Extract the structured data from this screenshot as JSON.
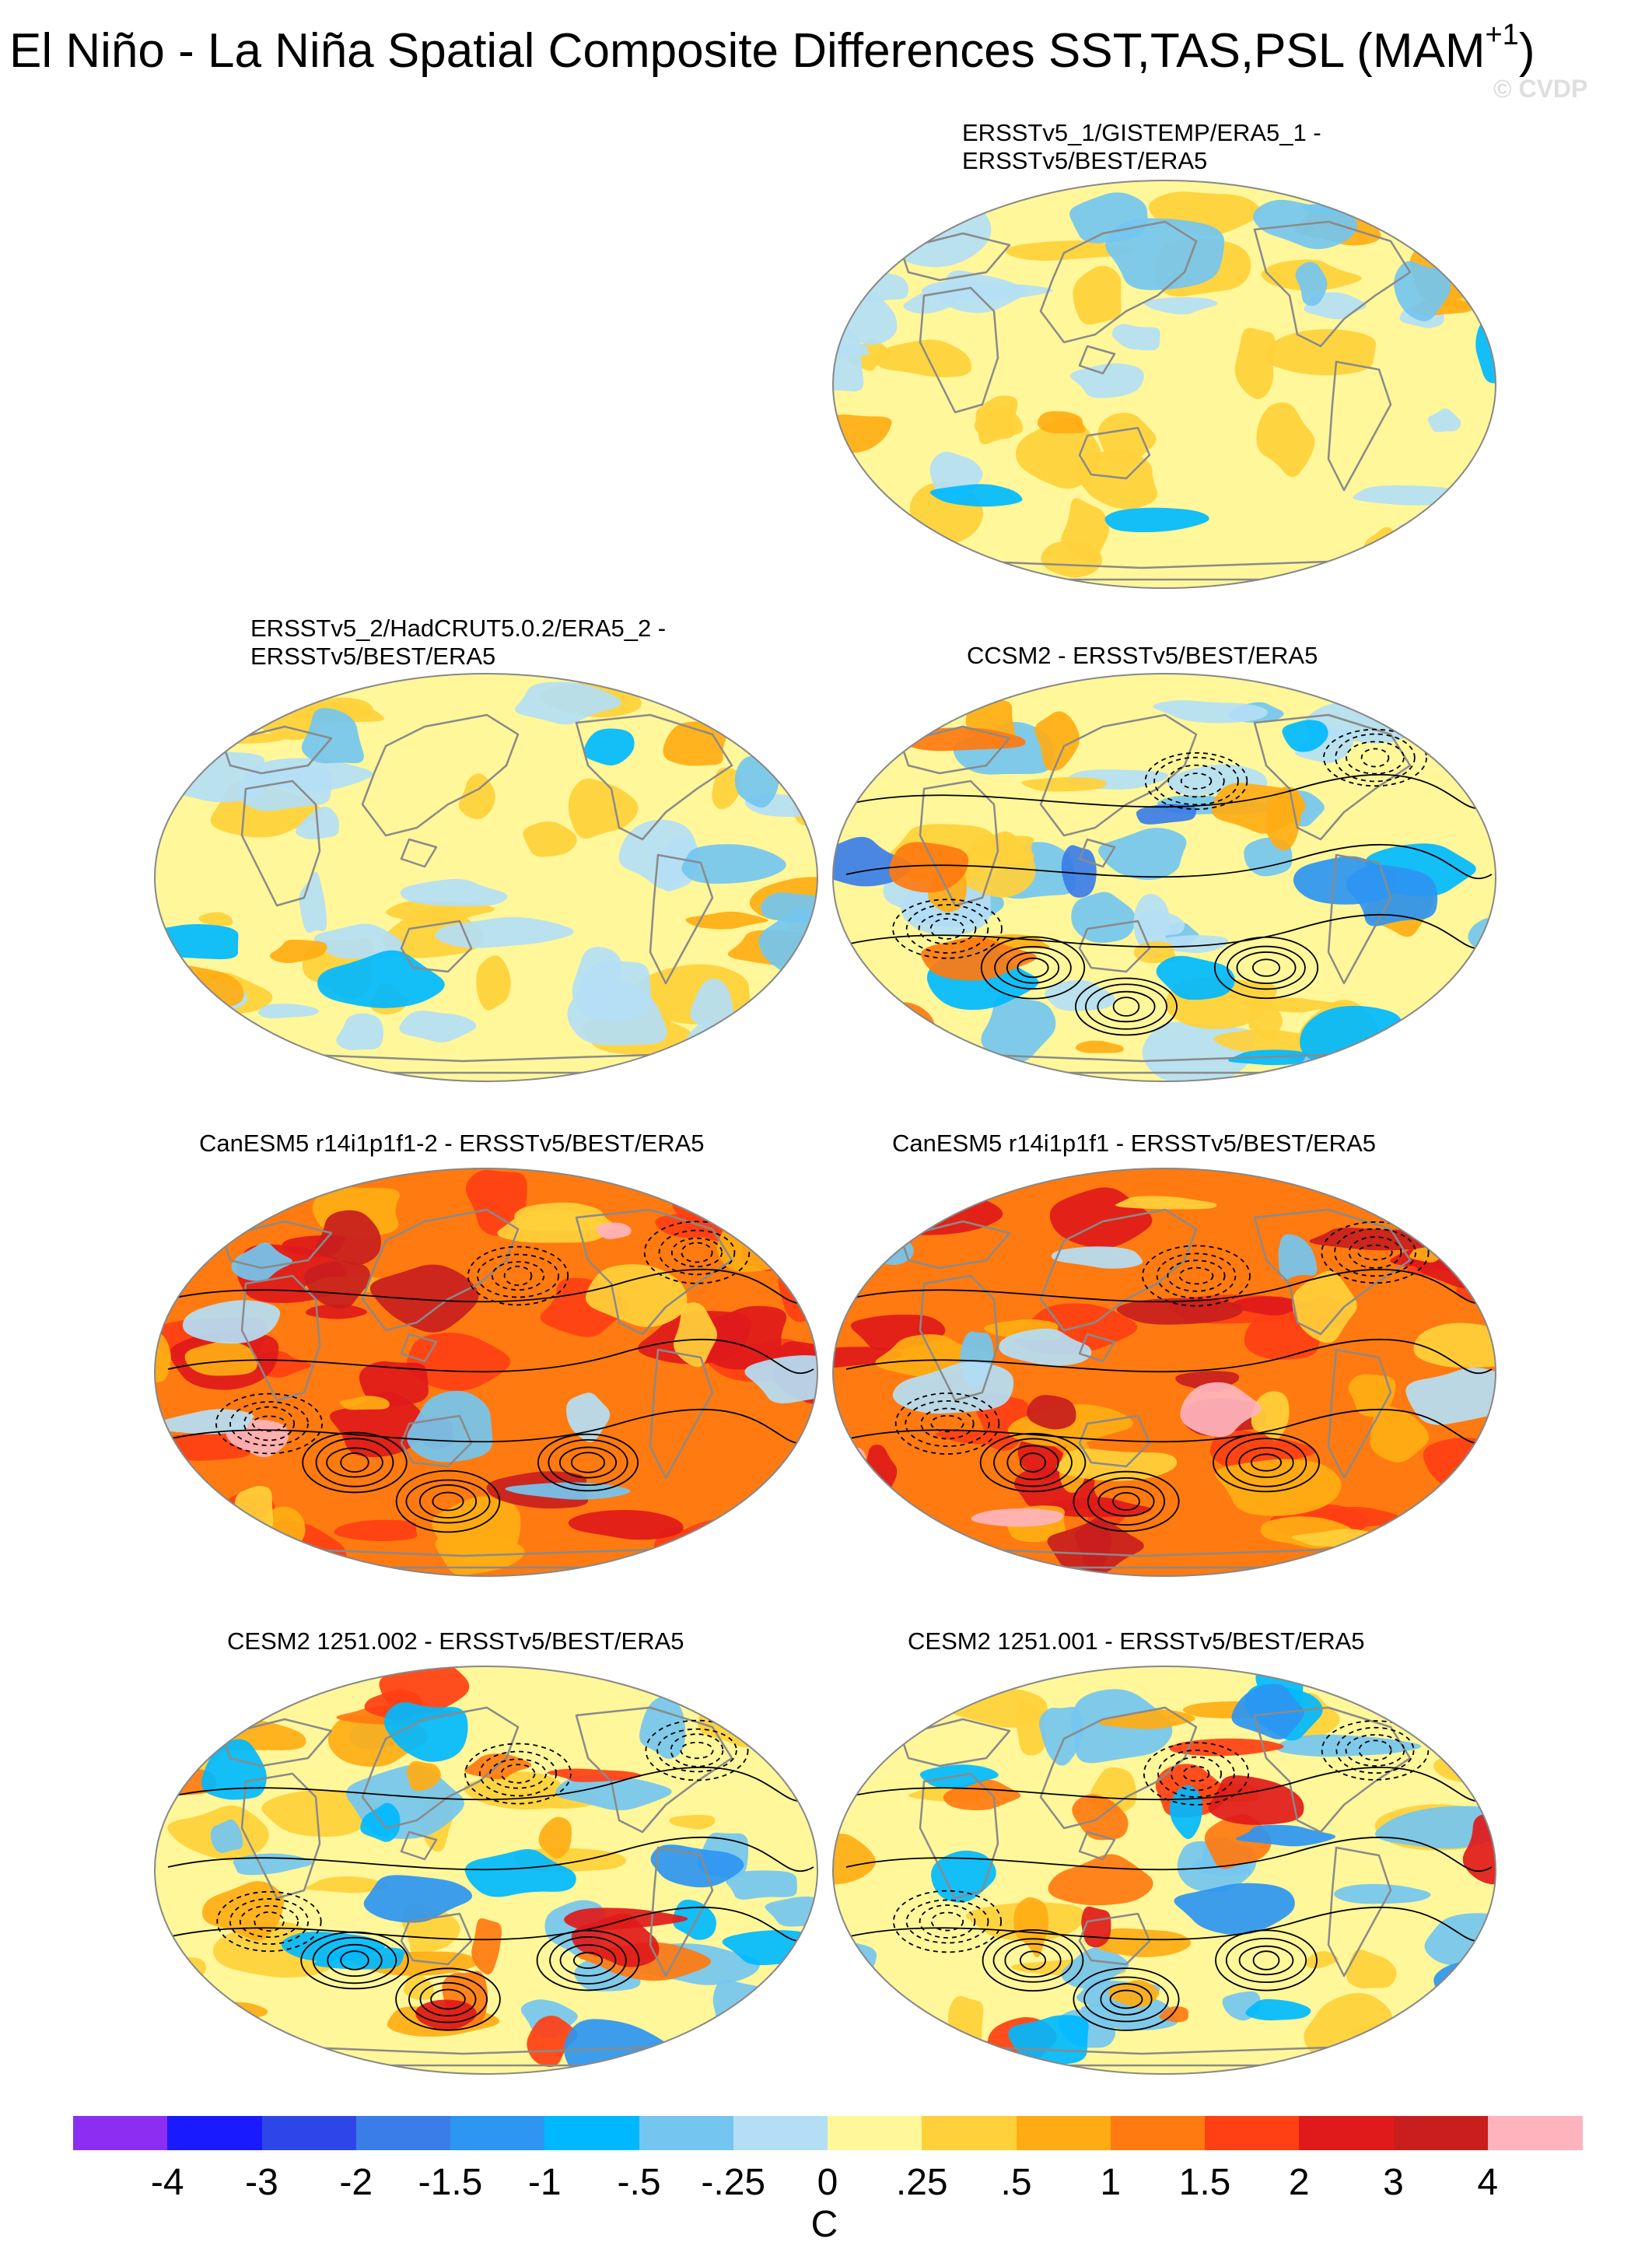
{
  "figure": {
    "title_main": "El Niño - La Niña Spatial Composite Differences SST,TAS,PSL (MAM",
    "title_sup": "+1",
    "title_close": ")",
    "watermark": "© CVDP"
  },
  "panels": [
    {
      "id": "p1",
      "title": "ERSSTv5_1/GISTEMP/ERA5_1 -\nERSSTv5/BEST/ERA5",
      "style": "obs",
      "contours": false
    },
    {
      "id": "p2",
      "title": "ERSSTv5_2/HadCRUT5.0.2/ERA5_2 -\nERSSTv5/BEST/ERA5",
      "style": "obs",
      "contours": false
    },
    {
      "id": "p3",
      "title": "CCSM2 - ERSSTv5/BEST/ERA5",
      "style": "ccsm",
      "contours": true
    },
    {
      "id": "p4",
      "title": "CanESM5 r14i1p1f1-2 - ERSSTv5/BEST/ERA5",
      "style": "canesm",
      "contours": true
    },
    {
      "id": "p5",
      "title": "CanESM5 r14i1p1f1 - ERSSTv5/BEST/ERA5",
      "style": "canesm",
      "contours": true
    },
    {
      "id": "p6",
      "title": "CESM2 1251.002 - ERSSTv5/BEST/ERA5",
      "style": "cesm",
      "contours": true
    },
    {
      "id": "p7",
      "title": "CESM2 1251.001 - ERSSTv5/BEST/ERA5",
      "style": "cesm",
      "contours": true
    }
  ],
  "colorbar": {
    "labels": [
      "-4",
      "-3",
      "-2",
      "-1.5",
      "-1",
      "-.5",
      "-.25",
      "0",
      ".25",
      ".5",
      "1",
      "1.5",
      "2",
      "3",
      "4"
    ],
    "unit": "C",
    "colors": [
      "#8c2ef2",
      "#1a1aff",
      "#2e46e8",
      "#3a7de8",
      "#2d95f2",
      "#00b8ff",
      "#74c6f0",
      "#b4def5",
      "#fff79a",
      "#ffd03a",
      "#ffac14",
      "#ff7a10",
      "#ff3f14",
      "#e01a1a",
      "#c81e1e",
      "#ffb4bd"
    ]
  },
  "map_colors": {
    "land_outline": "#8a8a8a",
    "land_fill": "#ffffff",
    "contour": "#000000"
  }
}
